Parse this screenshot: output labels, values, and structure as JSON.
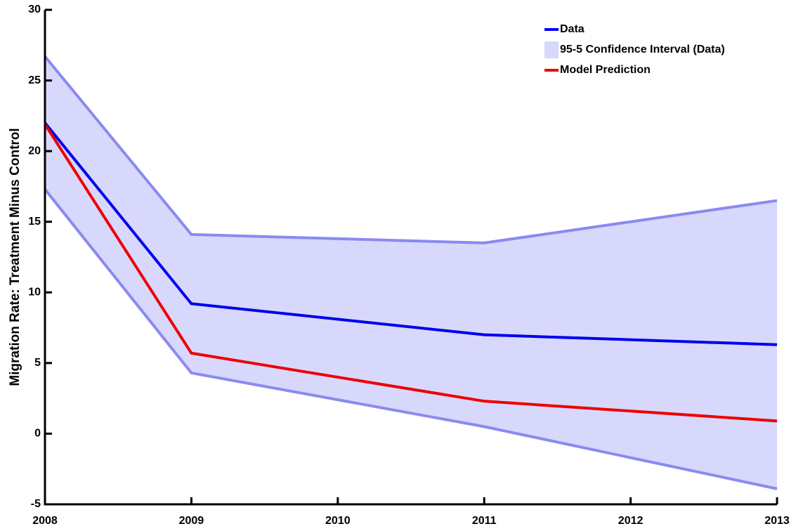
{
  "chart_data": {
    "type": "line",
    "ylabel": "Migration Rate: Treatment Minus Control",
    "x": [
      2008,
      2009,
      2011,
      2013
    ],
    "band": {
      "name": "95-5 Confidence Interval (Data)",
      "color": "#d8d8fc",
      "edge_color": "#8a8af0",
      "upper": [
        26.7,
        14.1,
        13.5,
        16.5
      ],
      "lower": [
        17.3,
        4.3,
        0.5,
        -3.9
      ]
    },
    "series": [
      {
        "name": "Data",
        "color": "#0000ee",
        "values": [
          22.0,
          9.2,
          7.0,
          6.3
        ]
      },
      {
        "name": "Model Prediction",
        "color": "#ee0000",
        "values": [
          21.9,
          5.7,
          2.3,
          0.9
        ]
      }
    ],
    "xlim": [
      2008,
      2013
    ],
    "xticks": [
      2008,
      2009,
      2010,
      2011,
      2012,
      2013
    ],
    "ylim": [
      -5,
      30
    ],
    "yticks": [
      -5,
      0,
      5,
      10,
      15,
      20,
      25,
      30
    ],
    "legend": "upper right"
  }
}
